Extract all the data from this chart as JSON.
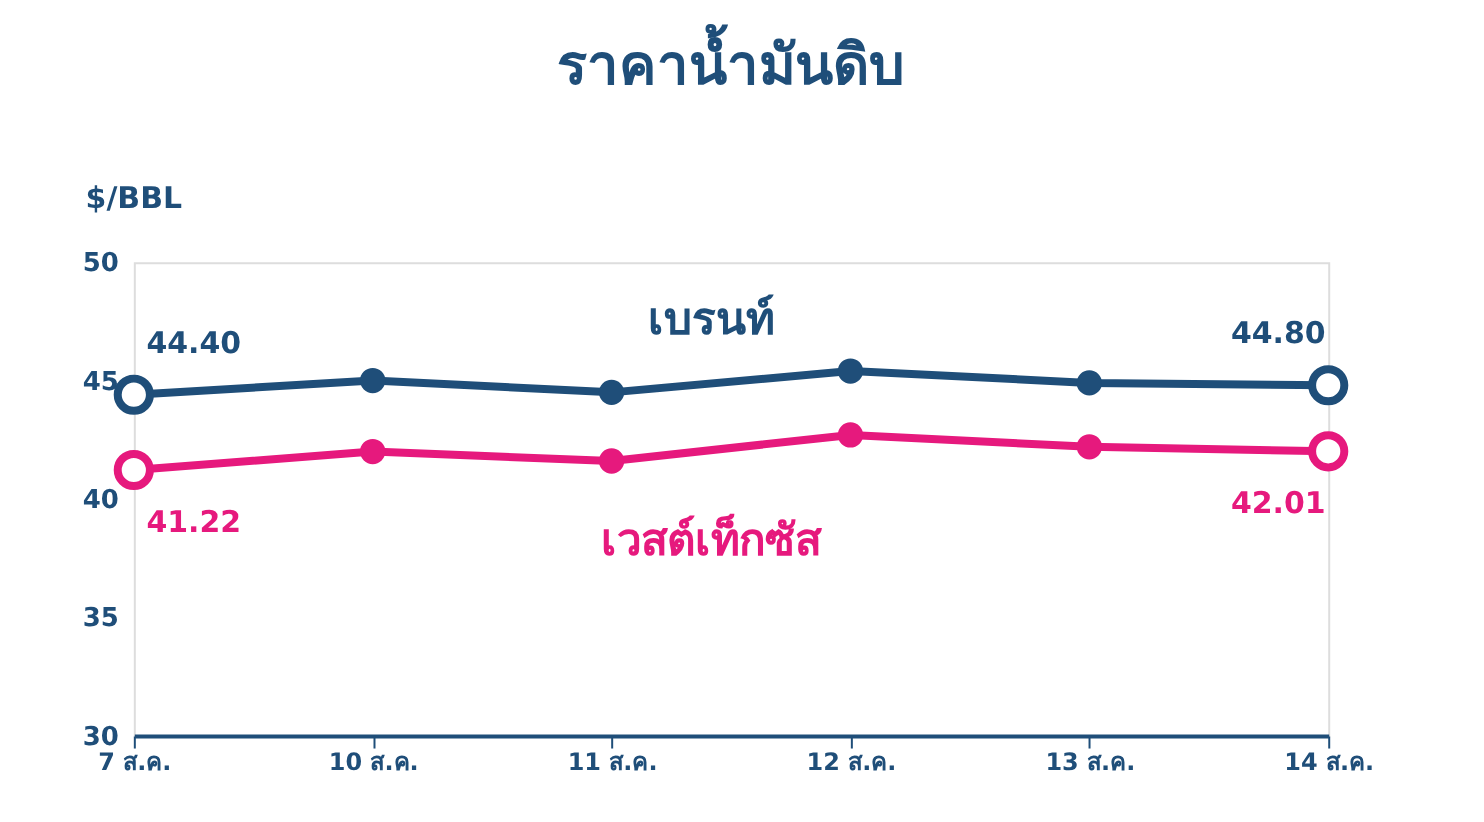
{
  "chart_data": {
    "type": "line",
    "title": "ราคาน้ำมันดิบ",
    "ylabel": "$/BBL",
    "categories": [
      "7 ส.ค.",
      "10 ส.ค.",
      "11 ส.ค.",
      "12 ส.ค.",
      "13 ส.ค.",
      "14 ส.ค."
    ],
    "series": [
      {
        "name": "เบรนท์",
        "color": "#1f4e79",
        "values": [
          44.4,
          45.0,
          44.5,
          45.4,
          44.9,
          44.8
        ],
        "value_labels": [
          "44.40",
          null,
          null,
          null,
          null,
          "44.80"
        ]
      },
      {
        "name": "เวสต์เท็กซัส",
        "color": "#e6197d",
        "values": [
          41.22,
          42.0,
          41.6,
          42.7,
          42.2,
          42.01
        ],
        "value_labels": [
          "41.22",
          null,
          null,
          null,
          null,
          "42.01"
        ]
      }
    ],
    "ylim": [
      30,
      50
    ],
    "yticks": [
      30,
      35,
      40,
      45,
      50
    ],
    "grid": false,
    "marker": "circle",
    "line_style": "solid"
  }
}
